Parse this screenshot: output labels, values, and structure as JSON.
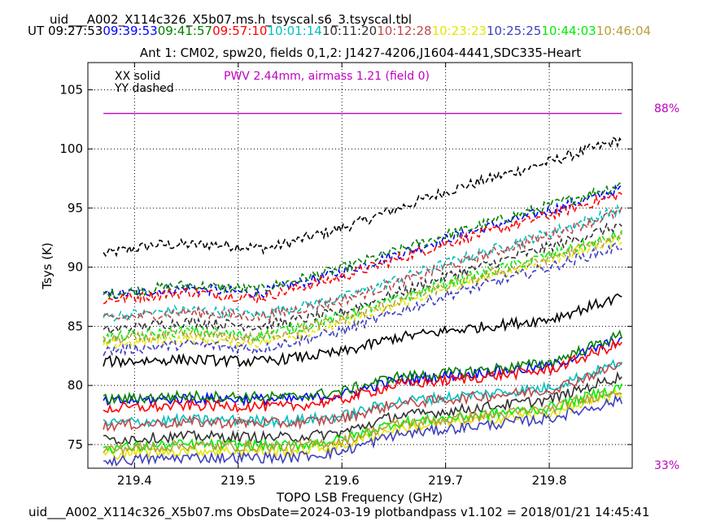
{
  "header": {
    "file_title": "uid___A002_X114c326_X5b07.ms.h_tsyscal.s6_3.tsyscal.tbl",
    "ut_prefix": "UT",
    "times": [
      {
        "label": "09:27:53",
        "color": "#000000"
      },
      {
        "label": "09:39:53",
        "color": "#0000ff"
      },
      {
        "label": "09:41:57",
        "color": "#008000"
      },
      {
        "label": "09:57:10",
        "color": "#ff0000"
      },
      {
        "label": "10:01:14",
        "color": "#00bfbf"
      },
      {
        "label": "10:11:20",
        "color": "#333333"
      },
      {
        "label": "10:12:28",
        "color": "#c04848"
      },
      {
        "label": "10:23:23",
        "color": "#e6e600"
      },
      {
        "label": "10:25:25",
        "color": "#4040c0"
      },
      {
        "label": "10:44:03",
        "color": "#00ee00"
      },
      {
        "label": "10:46:04",
        "color": "#b8a038"
      }
    ]
  },
  "footer": {
    "text": "uid___A002_X114c326_X5b07.ms  ObsDate=2024-03-19   plotbandpass v1.102 = 2018/01/21 14:45:41"
  },
  "chart_data": {
    "type": "line",
    "title": "Ant 1: CM02,  spw20,  fields 0,1,2: J1427-4206,J1604-4441,SDC335-Heart",
    "xlabel": "TOPO LSB Frequency (GHz)",
    "ylabel": "Tsys (K)",
    "xlim": [
      219.355,
      219.88
    ],
    "ylim": [
      73,
      107.3
    ],
    "xticks": [
      219.4,
      219.5,
      219.6,
      219.7,
      219.8
    ],
    "yticks": [
      75,
      80,
      85,
      90,
      95,
      100,
      105
    ],
    "grid": true,
    "legend": {
      "solid": "XX solid",
      "dashed": "YY dashed",
      "placement": "top-left"
    },
    "pwv_annotation": {
      "text": "PWV 2.44mm, airmass 1.21 (field 0)",
      "color": "#c000c0"
    },
    "atm_transmission": {
      "color": "#c000c0",
      "x": [
        219.37,
        219.87
      ],
      "y": [
        103.0,
        103.0
      ],
      "right_axis_top_label": "88%",
      "right_axis_bottom_label": "33%"
    },
    "series": [
      {
        "color": "#000000",
        "style": "dashed",
        "points": [
          [
            219.37,
            91.1
          ],
          [
            219.42,
            91.9
          ],
          [
            219.48,
            91.9
          ],
          [
            219.53,
            91.6
          ],
          [
            219.6,
            93.3
          ],
          [
            219.7,
            96.4
          ],
          [
            219.8,
            98.9
          ],
          [
            219.87,
            100.8
          ]
        ]
      },
      {
        "color": "#0000ff",
        "style": "dashed",
        "points": [
          [
            219.37,
            87.6
          ],
          [
            219.45,
            88.2
          ],
          [
            219.52,
            87.8
          ],
          [
            219.6,
            89.6
          ],
          [
            219.7,
            92.4
          ],
          [
            219.8,
            94.8
          ],
          [
            219.87,
            96.6
          ]
        ]
      },
      {
        "color": "#008000",
        "style": "dashed",
        "points": [
          [
            219.37,
            87.7
          ],
          [
            219.45,
            88.5
          ],
          [
            219.52,
            88.1
          ],
          [
            219.6,
            89.9
          ],
          [
            219.7,
            92.7
          ],
          [
            219.8,
            95.2
          ],
          [
            219.87,
            97.0
          ]
        ]
      },
      {
        "color": "#ff0000",
        "style": "dashed",
        "points": [
          [
            219.37,
            87.2
          ],
          [
            219.45,
            87.9
          ],
          [
            219.52,
            87.4
          ],
          [
            219.6,
            89.2
          ],
          [
            219.7,
            92.0
          ],
          [
            219.8,
            94.4
          ],
          [
            219.87,
            96.2
          ]
        ]
      },
      {
        "color": "#00bfbf",
        "style": "dashed",
        "points": [
          [
            219.37,
            85.8
          ],
          [
            219.45,
            86.4
          ],
          [
            219.52,
            86.0
          ],
          [
            219.6,
            87.4
          ],
          [
            219.7,
            90.3
          ],
          [
            219.8,
            92.9
          ],
          [
            219.87,
            94.9
          ]
        ]
      },
      {
        "color": "#333333",
        "style": "dashed",
        "points": [
          [
            219.37,
            84.6
          ],
          [
            219.45,
            85.4
          ],
          [
            219.52,
            85.0
          ],
          [
            219.6,
            86.2
          ],
          [
            219.7,
            89.2
          ],
          [
            219.8,
            91.7
          ],
          [
            219.87,
            93.6
          ]
        ]
      },
      {
        "color": "#c04848",
        "style": "dashed",
        "points": [
          [
            219.37,
            85.6
          ],
          [
            219.45,
            86.2
          ],
          [
            219.52,
            85.8
          ],
          [
            219.6,
            87.2
          ],
          [
            219.7,
            90.0
          ],
          [
            219.8,
            92.7
          ],
          [
            219.87,
            94.7
          ]
        ]
      },
      {
        "color": "#e6e600",
        "style": "dashed",
        "points": [
          [
            219.37,
            83.4
          ],
          [
            219.45,
            84.0
          ],
          [
            219.52,
            83.6
          ],
          [
            219.6,
            85.2
          ],
          [
            219.7,
            88.2
          ],
          [
            219.8,
            90.6
          ],
          [
            219.87,
            92.4
          ]
        ]
      },
      {
        "color": "#4040c0",
        "style": "dashed",
        "points": [
          [
            219.37,
            82.9
          ],
          [
            219.45,
            83.5
          ],
          [
            219.52,
            83.1
          ],
          [
            219.6,
            84.6
          ],
          [
            219.7,
            87.6
          ],
          [
            219.8,
            90.0
          ],
          [
            219.87,
            91.8
          ]
        ]
      },
      {
        "color": "#00ee00",
        "style": "dashed",
        "points": [
          [
            219.37,
            84.0
          ],
          [
            219.45,
            84.6
          ],
          [
            219.52,
            84.2
          ],
          [
            219.6,
            85.8
          ],
          [
            219.7,
            88.6
          ],
          [
            219.8,
            91.0
          ],
          [
            219.87,
            92.8
          ]
        ]
      },
      {
        "color": "#b8a038",
        "style": "dashed",
        "points": [
          [
            219.37,
            83.8
          ],
          [
            219.45,
            84.3
          ],
          [
            219.52,
            84.0
          ],
          [
            219.6,
            85.6
          ],
          [
            219.7,
            88.4
          ],
          [
            219.8,
            90.8
          ],
          [
            219.87,
            92.6
          ]
        ]
      },
      {
        "color": "#000000",
        "style": "solid",
        "points": [
          [
            219.37,
            82.0
          ],
          [
            219.45,
            82.2
          ],
          [
            219.52,
            82.0
          ],
          [
            219.6,
            82.8
          ],
          [
            219.65,
            84.0
          ],
          [
            219.7,
            84.6
          ],
          [
            219.8,
            85.6
          ],
          [
            219.87,
            87.5
          ]
        ]
      },
      {
        "color": "#0000ff",
        "style": "solid",
        "points": [
          [
            219.37,
            78.6
          ],
          [
            219.45,
            78.9
          ],
          [
            219.55,
            78.8
          ],
          [
            219.6,
            79.2
          ],
          [
            219.65,
            80.4
          ],
          [
            219.7,
            80.8
          ],
          [
            219.8,
            81.6
          ],
          [
            219.87,
            84.0
          ]
        ]
      },
      {
        "color": "#008000",
        "style": "solid",
        "points": [
          [
            219.37,
            78.8
          ],
          [
            219.45,
            79.1
          ],
          [
            219.55,
            79.0
          ],
          [
            219.6,
            79.5
          ],
          [
            219.65,
            80.7
          ],
          [
            219.7,
            81.0
          ],
          [
            219.8,
            81.9
          ],
          [
            219.87,
            84.3
          ]
        ]
      },
      {
        "color": "#ff0000",
        "style": "solid",
        "points": [
          [
            219.37,
            78.0
          ],
          [
            219.45,
            78.3
          ],
          [
            219.55,
            78.2
          ],
          [
            219.6,
            78.8
          ],
          [
            219.65,
            80.0
          ],
          [
            219.7,
            80.4
          ],
          [
            219.8,
            81.3
          ],
          [
            219.87,
            83.6
          ]
        ]
      },
      {
        "color": "#00bfbf",
        "style": "solid",
        "points": [
          [
            219.37,
            76.8
          ],
          [
            219.45,
            77.1
          ],
          [
            219.55,
            77.0
          ],
          [
            219.6,
            77.4
          ],
          [
            219.65,
            78.6
          ],
          [
            219.7,
            79.0
          ],
          [
            219.8,
            79.8
          ],
          [
            219.87,
            82.0
          ]
        ]
      },
      {
        "color": "#333333",
        "style": "solid",
        "points": [
          [
            219.37,
            75.4
          ],
          [
            219.45,
            75.7
          ],
          [
            219.55,
            75.6
          ],
          [
            219.6,
            76.0
          ],
          [
            219.65,
            77.4
          ],
          [
            219.7,
            77.8
          ],
          [
            219.8,
            78.8
          ],
          [
            219.87,
            80.8
          ]
        ]
      },
      {
        "color": "#c04848",
        "style": "solid",
        "points": [
          [
            219.37,
            76.6
          ],
          [
            219.45,
            76.9
          ],
          [
            219.55,
            76.8
          ],
          [
            219.6,
            77.2
          ],
          [
            219.65,
            78.4
          ],
          [
            219.7,
            78.8
          ],
          [
            219.8,
            79.6
          ],
          [
            219.87,
            81.8
          ]
        ]
      },
      {
        "color": "#e6e600",
        "style": "solid",
        "points": [
          [
            219.37,
            74.2
          ],
          [
            219.45,
            74.5
          ],
          [
            219.55,
            74.4
          ],
          [
            219.6,
            74.9
          ],
          [
            219.65,
            76.3
          ],
          [
            219.7,
            76.8
          ],
          [
            219.8,
            77.6
          ],
          [
            219.87,
            79.3
          ]
        ]
      },
      {
        "color": "#4040c0",
        "style": "solid",
        "points": [
          [
            219.37,
            73.6
          ],
          [
            219.45,
            73.9
          ],
          [
            219.55,
            73.9
          ],
          [
            219.6,
            74.4
          ],
          [
            219.65,
            75.8
          ],
          [
            219.7,
            76.3
          ],
          [
            219.8,
            77.2
          ],
          [
            219.87,
            78.8
          ]
        ]
      },
      {
        "color": "#00ee00",
        "style": "solid",
        "points": [
          [
            219.37,
            74.7
          ],
          [
            219.45,
            75.0
          ],
          [
            219.55,
            74.9
          ],
          [
            219.6,
            75.4
          ],
          [
            219.65,
            76.8
          ],
          [
            219.7,
            77.2
          ],
          [
            219.8,
            78.1
          ],
          [
            219.87,
            79.9
          ]
        ]
      },
      {
        "color": "#b8a038",
        "style": "solid",
        "points": [
          [
            219.37,
            74.6
          ],
          [
            219.45,
            74.9
          ],
          [
            219.55,
            74.8
          ],
          [
            219.6,
            75.3
          ],
          [
            219.65,
            76.7
          ],
          [
            219.7,
            77.1
          ],
          [
            219.8,
            78.0
          ],
          [
            219.87,
            79.7
          ]
        ]
      }
    ]
  }
}
